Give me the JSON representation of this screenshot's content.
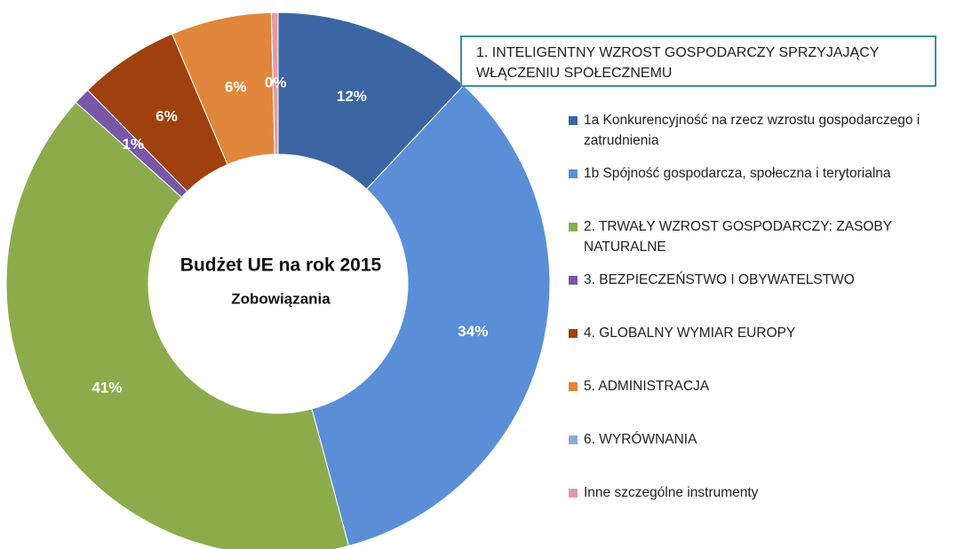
{
  "chart_data": {
    "type": "donut",
    "title": "Budżet UE na rok 2015",
    "subtitle": "Zobowiązania",
    "legend_title": "1. INTELIGENTNY WZROST GOSPODARCZY SPRZYJAJĄCY WŁĄCZENIU SPOŁECZNEMU",
    "categories": [
      "1a Konkurencyjność na rzecz wzrostu gospodarczego i zatrudnienia",
      "1b Spójność gospodarcza, społeczna i terytorialna",
      "2. TRWAŁY WZROST GOSPODARCZY: ZASOBY NATURALNE",
      "3. BEZPIECZEŃSTWO I OBYWATELSTWO",
      "4. GLOBALNY WYMIAR EUROPY",
      "5. ADMINISTRACJA",
      "6. WYRÓWNANIA",
      "Inne szczególne instrumenty"
    ],
    "values": [
      12,
      34,
      41,
      1,
      6,
      6,
      0,
      0.4
    ],
    "value_labels": [
      "12%",
      "34%",
      "41%",
      "1%",
      "6%",
      "6%",
      null,
      "0%"
    ],
    "colors": [
      "#3b66a3",
      "#5a8fd8",
      "#8cac4c",
      "#7857a6",
      "#9f410f",
      "#e1873b",
      "#8eabd3",
      "#e39ba8"
    ]
  }
}
